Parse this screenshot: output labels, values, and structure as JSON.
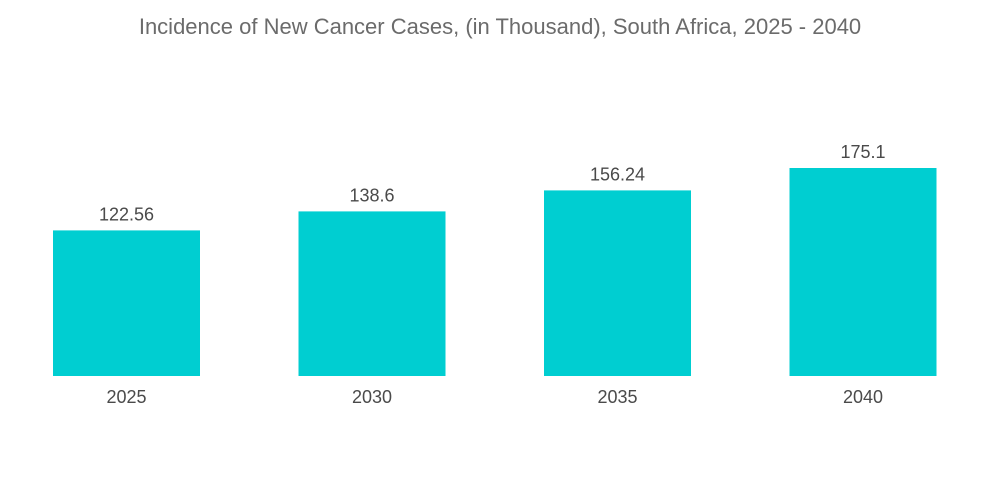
{
  "chart_data": {
    "type": "bar",
    "title": "Incidence of New Cancer Cases, (in Thousand), South Africa, 2025 - 2040",
    "categories": [
      "2025",
      "2030",
      "2035",
      "2040"
    ],
    "values": [
      122.56,
      138.6,
      156.24,
      175.1
    ],
    "value_labels": [
      "122.56",
      "138.6",
      "156.24",
      "175.1"
    ],
    "xlabel": "",
    "ylabel": "",
    "ylim": [
      0,
      175.1
    ],
    "grid": false,
    "legend": "none",
    "bar_color": "#00ced1"
  }
}
